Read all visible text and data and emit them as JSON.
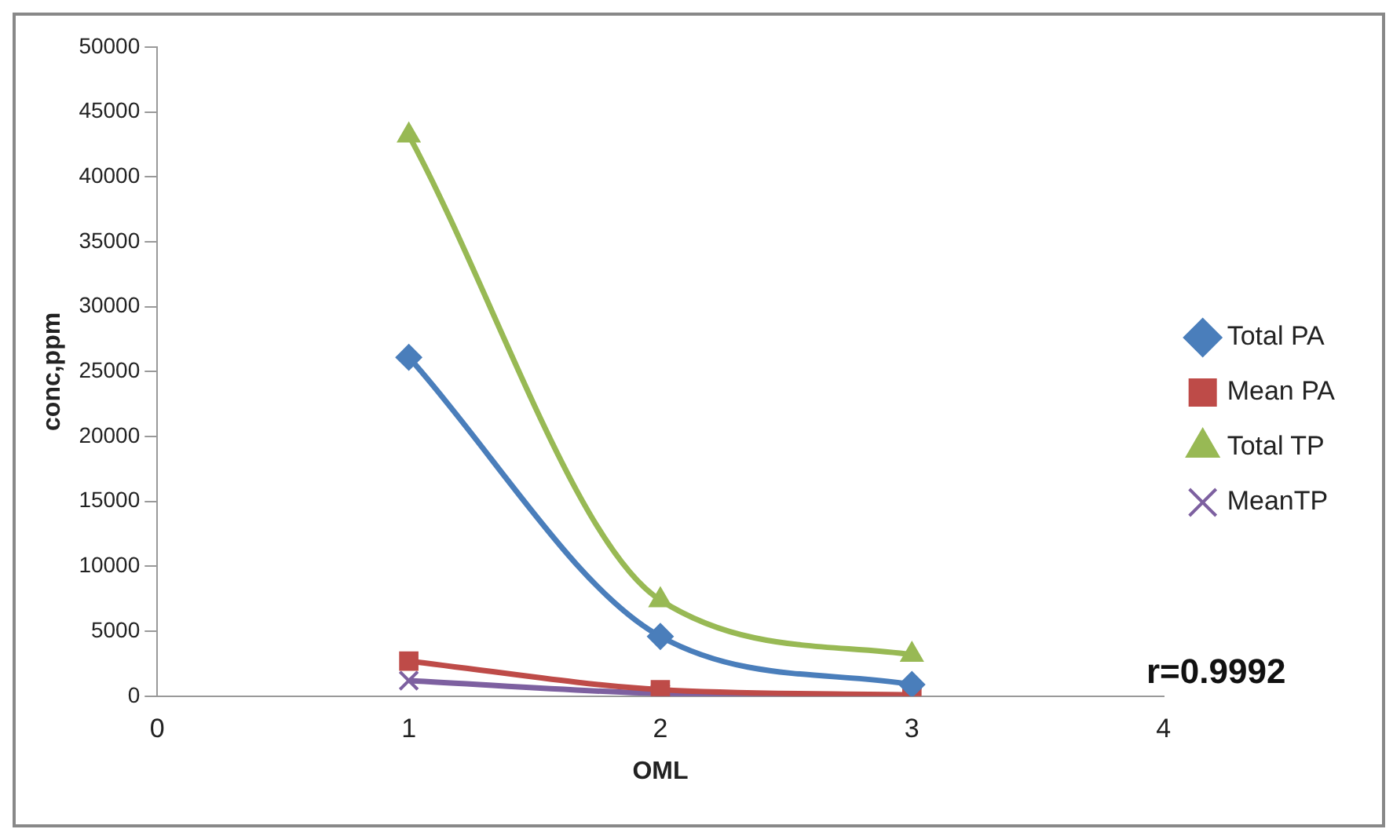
{
  "chart_data": {
    "type": "line",
    "xlabel": "OML",
    "ylabel": "conc,ppm",
    "x": [
      1,
      2,
      3
    ],
    "series": [
      {
        "name": "Total PA",
        "color": "#4a7ebb",
        "values": [
          26100,
          4600,
          900
        ],
        "marker": "diamond"
      },
      {
        "name": "Mean PA",
        "color": "#be4b48",
        "values": [
          2700,
          500,
          100
        ],
        "marker": "square"
      },
      {
        "name": "Total TP",
        "color": "#98b954",
        "values": [
          43200,
          7400,
          3200
        ],
        "marker": "triangle"
      },
      {
        "name": "MeanTP",
        "color": "#7d60a0",
        "values": [
          1200,
          200,
          0
        ],
        "marker": "cross"
      }
    ],
    "xlim": [
      0,
      4
    ],
    "xticks": [
      0,
      1,
      2,
      3,
      4
    ],
    "ylim": [
      0,
      50000
    ],
    "yticks": [
      0,
      5000,
      10000,
      15000,
      20000,
      25000,
      30000,
      35000,
      40000,
      45000,
      50000
    ],
    "grid": false,
    "legend": "right",
    "annotations": [
      "r=0.9992"
    ]
  }
}
